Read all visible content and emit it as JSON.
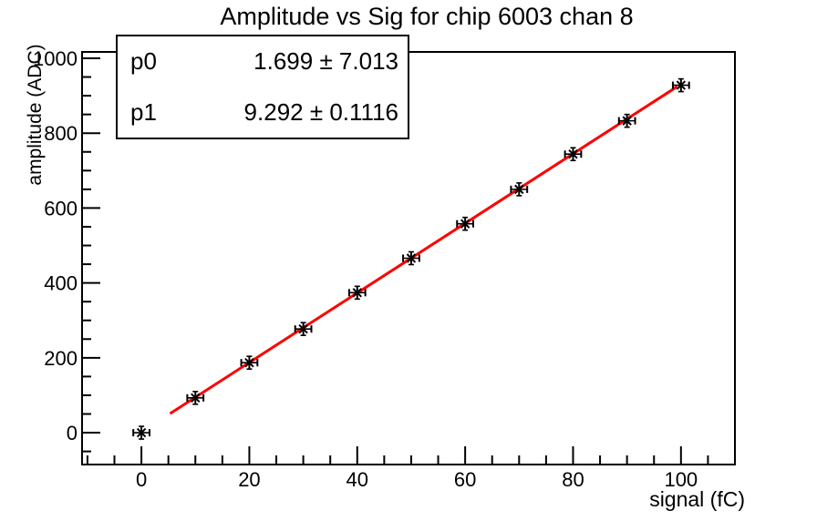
{
  "title": "Amplitude vs Sig for chip 6003 chan 8",
  "stats_box": {
    "rows": [
      {
        "name": "p0",
        "value": "1.699 ± 7.013"
      },
      {
        "name": "p1",
        "value": "9.292 ± 0.1116"
      }
    ]
  },
  "chart_data": {
    "type": "scatter",
    "title": "Amplitude vs Sig for chip 6003 chan 8",
    "xlabel": "signal (fC)",
    "ylabel": "amplitude (ADC)",
    "xlim": [
      -11,
      110
    ],
    "ylim": [
      -85,
      1017
    ],
    "x_ticks": [
      0,
      20,
      40,
      60,
      80,
      100
    ],
    "y_ticks": [
      0,
      200,
      400,
      600,
      800,
      1000
    ],
    "x_minor_step": 5,
    "y_minor_step": 50,
    "grid": false,
    "legend": false,
    "axis_color": "#000000",
    "series": [
      {
        "name": "data-points",
        "kind": "scatter",
        "marker": "asterisk-with-xerr",
        "color": "#000000",
        "x": [
          0,
          10,
          20,
          30,
          40,
          50,
          60,
          70,
          80,
          90,
          100
        ],
        "y": [
          0,
          93,
          187,
          277,
          374,
          466,
          558,
          650,
          744,
          833,
          928
        ],
        "xerr": 1.5
      },
      {
        "name": "linear-fit",
        "kind": "line",
        "color": "#ff0000",
        "fit": {
          "p0": 1.699,
          "p1": 9.292
        },
        "x_range": [
          5.3,
          99.3
        ]
      }
    ]
  }
}
